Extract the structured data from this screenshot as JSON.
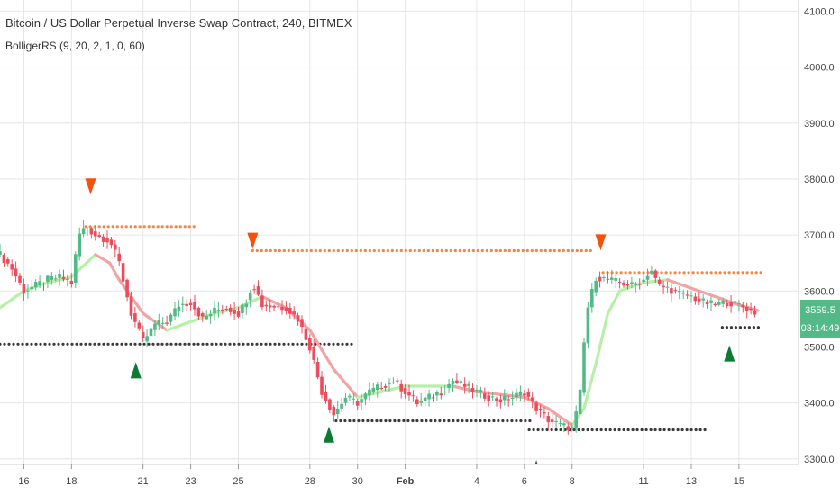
{
  "chart_data": {
    "type": "candlestick",
    "title": "Bitcoin / US Dollar Perpetual Inverse Swap Contract, 240, BITMEX",
    "indicator": "BolligerRS (9, 20, 2, 1, 0, 60)",
    "ylim": [
      3290,
      4120
    ],
    "y_ticks": [
      3300,
      3400,
      3500,
      3600,
      3700,
      3800,
      3900,
      4000,
      4100
    ],
    "y_tick_labels": [
      "3300.0",
      "3400.0",
      "3500.0",
      "3600.0",
      "3700.0",
      "3800.0",
      "3900.0",
      "4000.0",
      "4100.0"
    ],
    "x_ticks": [
      {
        "label": "16",
        "d": 1
      },
      {
        "label": "18",
        "d": 3
      },
      {
        "label": "21",
        "d": 6
      },
      {
        "label": "23",
        "d": 8
      },
      {
        "label": "25",
        "d": 10
      },
      {
        "label": "28",
        "d": 13
      },
      {
        "label": "30",
        "d": 15
      },
      {
        "label": "Feb",
        "d": 17
      },
      {
        "label": "4",
        "d": 20
      },
      {
        "label": "6",
        "d": 22
      },
      {
        "label": "8",
        "d": 24
      },
      {
        "label": "11",
        "d": 27
      },
      {
        "label": "13",
        "d": 29
      },
      {
        "label": "15",
        "d": 31
      }
    ],
    "x_range_days": [
      0,
      33.5
    ],
    "price_path": [
      [
        0,
        3665
      ],
      [
        0.5,
        3640
      ],
      [
        1,
        3600
      ],
      [
        1.5,
        3610
      ],
      [
        2,
        3620
      ],
      [
        2.5,
        3625
      ],
      [
        3,
        3615
      ],
      [
        3.3,
        3700
      ],
      [
        3.6,
        3715
      ],
      [
        4,
        3700
      ],
      [
        4.6,
        3690
      ],
      [
        5,
        3650
      ],
      [
        5.5,
        3560
      ],
      [
        6,
        3510
      ],
      [
        6.5,
        3540
      ],
      [
        7,
        3545
      ],
      [
        7.5,
        3575
      ],
      [
        8,
        3580
      ],
      [
        8.5,
        3550
      ],
      [
        9,
        3565
      ],
      [
        9.5,
        3570
      ],
      [
        10,
        3560
      ],
      [
        10.3,
        3580
      ],
      [
        10.6,
        3615
      ],
      [
        11,
        3575
      ],
      [
        12,
        3570
      ],
      [
        12.5,
        3550
      ],
      [
        13,
        3500
      ],
      [
        13.5,
        3420
      ],
      [
        14,
        3380
      ],
      [
        14.5,
        3410
      ],
      [
        15,
        3400
      ],
      [
        15.5,
        3420
      ],
      [
        16,
        3430
      ],
      [
        16.5,
        3440
      ],
      [
        17,
        3420
      ],
      [
        17.5,
        3400
      ],
      [
        18,
        3410
      ],
      [
        18.5,
        3420
      ],
      [
        19,
        3440
      ],
      [
        19.5,
        3430
      ],
      [
        20,
        3420
      ],
      [
        20.5,
        3410
      ],
      [
        21,
        3405
      ],
      [
        21.5,
        3410
      ],
      [
        22,
        3420
      ],
      [
        22.5,
        3390
      ],
      [
        23,
        3370
      ],
      [
        23.5,
        3360
      ],
      [
        24,
        3355
      ],
      [
        24.3,
        3400
      ],
      [
        24.6,
        3560
      ],
      [
        25,
        3625
      ],
      [
        25.5,
        3620
      ],
      [
        26,
        3615
      ],
      [
        26.5,
        3610
      ],
      [
        27,
        3620
      ],
      [
        27.3,
        3640
      ],
      [
        27.6,
        3610
      ],
      [
        28,
        3605
      ],
      [
        28.5,
        3595
      ],
      [
        29,
        3590
      ],
      [
        29.5,
        3580
      ],
      [
        30,
        3575
      ],
      [
        30.5,
        3580
      ],
      [
        31,
        3575
      ],
      [
        31.5,
        3565
      ],
      [
        31.8,
        3560
      ]
    ],
    "bollinger_line": [
      [
        0,
        3570
      ],
      [
        1,
        3600
      ],
      [
        2,
        3615
      ],
      [
        3,
        3625
      ],
      [
        4,
        3665
      ],
      [
        4.6,
        3650
      ],
      [
        5,
        3620
      ],
      [
        6,
        3560
      ],
      [
        7,
        3530
      ],
      [
        8,
        3545
      ],
      [
        9,
        3560
      ],
      [
        10,
        3570
      ],
      [
        11,
        3590
      ],
      [
        12,
        3570
      ],
      [
        13,
        3530
      ],
      [
        14,
        3460
      ],
      [
        15,
        3410
      ],
      [
        16,
        3420
      ],
      [
        17,
        3430
      ],
      [
        18,
        3430
      ],
      [
        19,
        3430
      ],
      [
        20,
        3420
      ],
      [
        21,
        3415
      ],
      [
        22,
        3410
      ],
      [
        23,
        3390
      ],
      [
        24,
        3360
      ],
      [
        24.5,
        3390
      ],
      [
        25,
        3470
      ],
      [
        25.5,
        3560
      ],
      [
        26,
        3600
      ],
      [
        27,
        3615
      ],
      [
        28,
        3620
      ],
      [
        29,
        3605
      ],
      [
        30,
        3590
      ],
      [
        31,
        3575
      ],
      [
        31.8,
        3565
      ]
    ],
    "resistance_levels": [
      {
        "value": 3715,
        "from": 3.6,
        "to": 8.2
      },
      {
        "value": 3672,
        "from": 10.6,
        "to": 24.8
      },
      {
        "value": 3633,
        "from": 25.3,
        "to": 32
      }
    ],
    "support_levels": [
      {
        "value": 3505,
        "from": 0,
        "to": 14.8
      },
      {
        "value": 3368,
        "from": 14.1,
        "to": 22.4
      },
      {
        "value": 3352,
        "from": 22.2,
        "to": 29.7
      },
      {
        "value": 3535,
        "from": 30.3,
        "to": 32
      }
    ],
    "sell_signals": [
      {
        "d": 3.8,
        "price": 3785
      },
      {
        "d": 10.6,
        "price": 3688
      },
      {
        "d": 25.2,
        "price": 3685
      }
    ],
    "buy_signals": [
      {
        "d": 5.7,
        "price": 3460
      },
      {
        "d": 13.8,
        "price": 3345
      },
      {
        "d": 22.5,
        "price": 3285
      },
      {
        "d": 30.6,
        "price": 3490
      }
    ],
    "last_price": {
      "value": 3559.5,
      "label": "3559.5",
      "countdown": "03:14:49"
    }
  },
  "colors": {
    "up": "#53b987",
    "down": "#eb4d5c",
    "sell": "#f4510b",
    "buy": "#0b7a32",
    "resistance": "#f5853f",
    "support": "#3a3a3a",
    "line_down": "#f2a3a3",
    "line_up": "#b6f0a6",
    "badge": "#53b987",
    "grid": "#e6e6e6"
  }
}
